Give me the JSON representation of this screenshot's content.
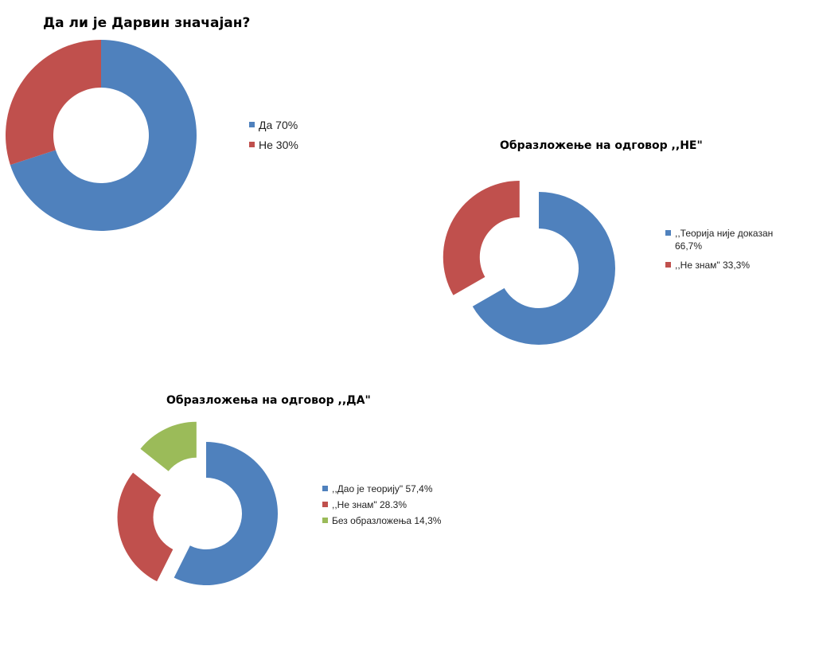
{
  "chart_data": [
    {
      "type": "pie",
      "title": "Да ли је Дарвин значајан?",
      "categories": [
        "Да 70%",
        "Не 30%"
      ],
      "values": [
        70,
        30
      ],
      "colors": [
        "#4f81bd",
        "#c0504d"
      ],
      "legend": "right"
    },
    {
      "type": "pie",
      "title": "Образложење на одговор ,,НЕ\"",
      "categories": [
        ",,Теорија није доказан 66,7%",
        ",,Не знам\" 33,3%"
      ],
      "values": [
        66.7,
        33.3
      ],
      "colors": [
        "#4f81bd",
        "#c0504d"
      ],
      "legend": "right"
    },
    {
      "type": "pie",
      "title": "Образложења на одговор ,,ДА\"",
      "categories": [
        ",,Дао је теорију\" 57,4%",
        ",,Не знам\" 28.3%",
        "Без образложења 14,3%"
      ],
      "values": [
        57.4,
        28.3,
        14.3
      ],
      "colors": [
        "#4f81bd",
        "#c0504d",
        "#9bbb59"
      ],
      "legend": "right"
    }
  ]
}
